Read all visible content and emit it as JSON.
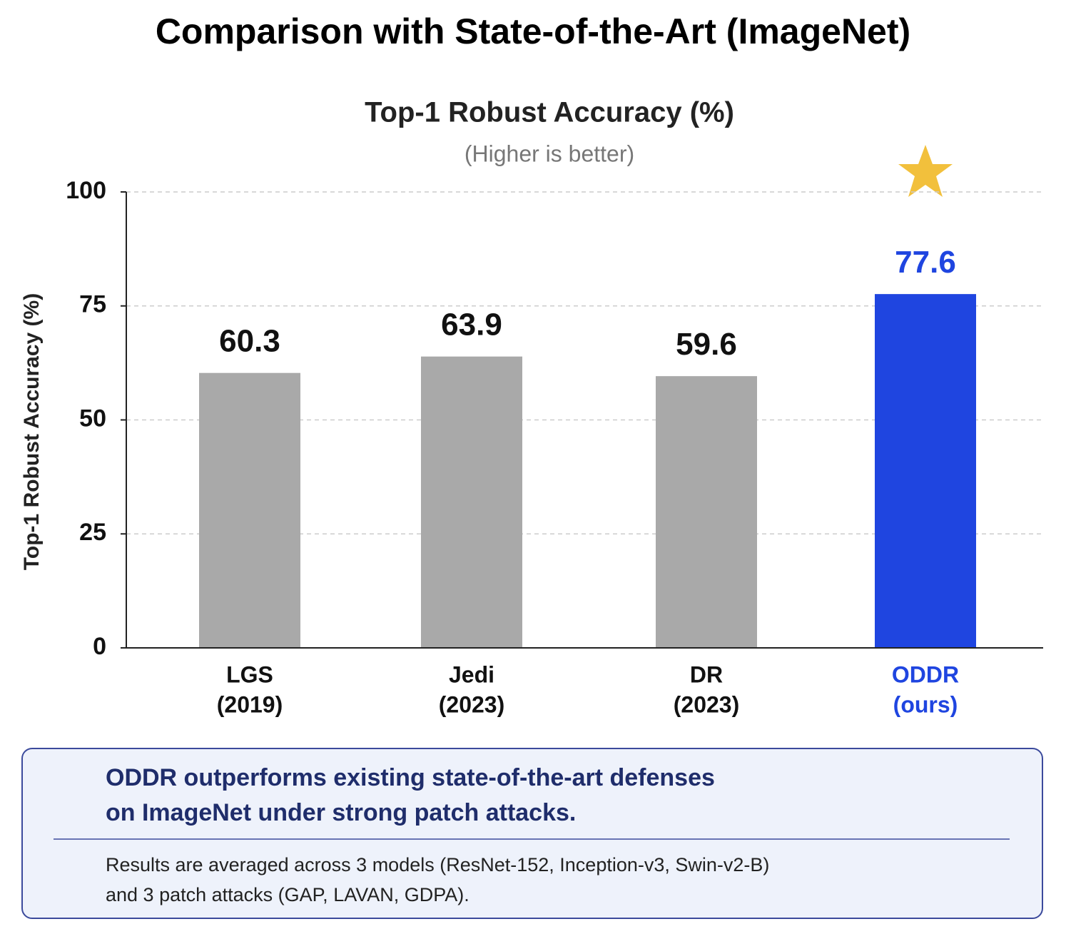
{
  "page_title": "Comparison with State-of-the-Art (ImageNet)",
  "chart_data": {
    "type": "bar",
    "title": "Top-1 Robust Accuracy (%)",
    "subtitle": "(Higher is better)",
    "y_label": "Top-1 Robust Accuracy (%)",
    "categories": [
      [
        "LGS",
        "(2019)"
      ],
      [
        "Jedi",
        "(2023)"
      ],
      [
        "DR",
        "(2023)"
      ],
      [
        "ODDR",
        "(ours)"
      ]
    ],
    "values": [
      60.3,
      63.9,
      59.6,
      77.6
    ],
    "colors": [
      "#a9a9a9",
      "#a9a9a9",
      "#a9a9a9",
      "#1f45e0"
    ],
    "text_colors": [
      "#111111",
      "#111111",
      "#111111",
      "#1f45e0"
    ],
    "ylim": [
      0,
      100
    ],
    "yticks": [
      0,
      25,
      50,
      75,
      100
    ],
    "grid": true
  },
  "summary": {
    "heading": [
      "ODDR outperforms existing state-of-the-art defenses",
      "on ImageNet under strong patch attacks."
    ],
    "note": [
      "Results are averaged across 3 models (ResNet-152, Inception-v3, Swin-v2-B)",
      "and 3 patch attacks (GAP, LAVAN, GDPA)."
    ]
  }
}
